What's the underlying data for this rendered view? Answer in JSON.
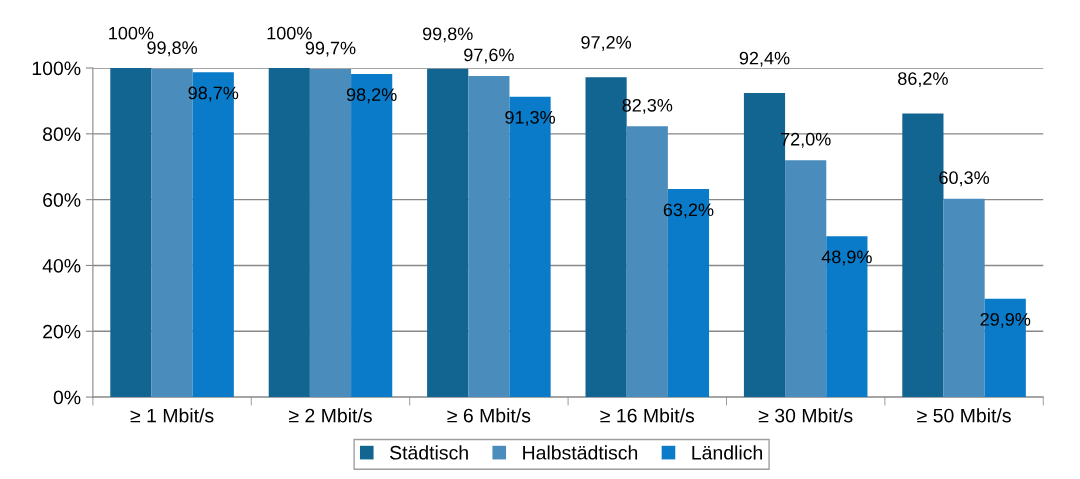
{
  "chart_data": {
    "type": "bar",
    "categories": [
      "≥ 1 Mbit/s",
      "≥ 2 Mbit/s",
      "≥ 6 Mbit/s",
      "≥ 16 Mbit/s",
      "≥ 30 Mbit/s",
      "≥ 50 Mbit/s"
    ],
    "series": [
      {
        "name": "Städtisch",
        "color": "#126591",
        "values": [
          100,
          100,
          99.8,
          97.2,
          92.4,
          86.2
        ],
        "value_labels": [
          "100%",
          "100%",
          "99,8%",
          "97,2%",
          "92,4%",
          "86,2%"
        ]
      },
      {
        "name": "Halbstädtisch",
        "color": "#4a8cbb",
        "values": [
          99.8,
          99.7,
          97.6,
          82.3,
          72.0,
          60.3
        ],
        "value_labels": [
          "99,8%",
          "99,7%",
          "97,6%",
          "82,3%",
          "72,0%",
          "60,3%"
        ]
      },
      {
        "name": "Ländlich",
        "color": "#0a7bc9",
        "values": [
          98.7,
          98.2,
          91.3,
          63.2,
          48.9,
          29.9
        ],
        "value_labels": [
          "98,7%",
          "98,2%",
          "91,3%",
          "63,2%",
          "48,9%",
          "29,9%"
        ]
      }
    ],
    "ylim": [
      0,
      100
    ],
    "yticks": [
      {
        "value": 0,
        "label": "0%"
      },
      {
        "value": 20,
        "label": "20%"
      },
      {
        "value": 40,
        "label": "40%"
      },
      {
        "value": 60,
        "label": "60%"
      },
      {
        "value": 80,
        "label": "80%"
      },
      {
        "value": 100,
        "label": "100%"
      }
    ],
    "grid": "y",
    "legend": "bottom"
  }
}
